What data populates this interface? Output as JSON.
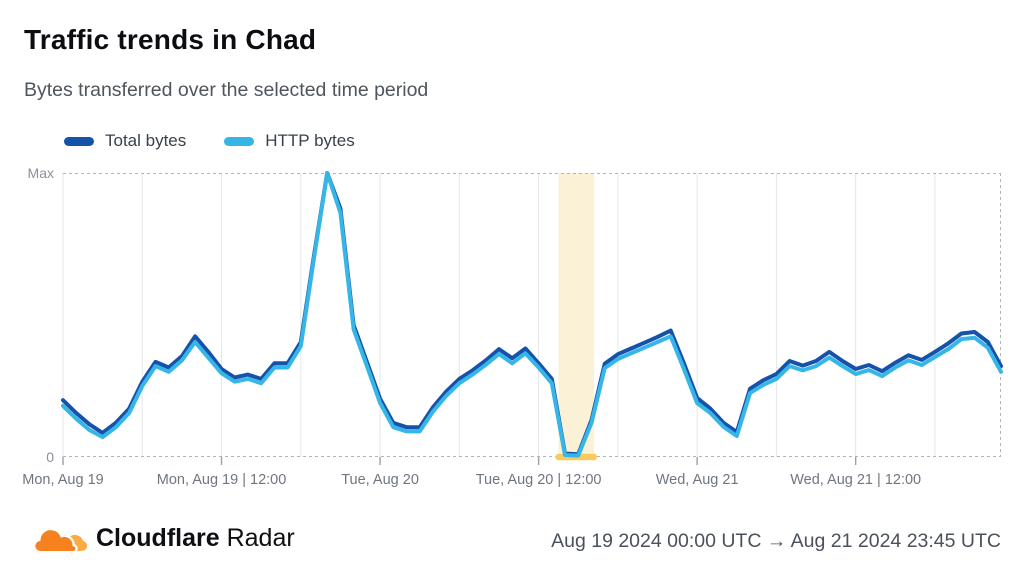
{
  "header": {
    "title": "Traffic trends in Chad",
    "subtitle": "Bytes transferred over the selected time period"
  },
  "legend": [
    {
      "label": "Total bytes",
      "color": "#1552AA"
    },
    {
      "label": "HTTP bytes",
      "color": "#35B6E6"
    }
  ],
  "chart_data": {
    "type": "line",
    "title": "Traffic trends in Chad",
    "xlabel": "",
    "ylabel": "",
    "ylim_labels": {
      "top": "Max",
      "bottom": "0"
    },
    "grid": "vertical-every-6h, dashed top/bottom/right borders",
    "legend_position": "top-left",
    "x_unit": "hours since Aug 19 2024 00:00 UTC",
    "x_span_hours": 71,
    "gridline_every_hours": 6,
    "x_tick_labels": [
      {
        "hour": 0,
        "label": "Mon, Aug 19"
      },
      {
        "hour": 12,
        "label": "Mon, Aug 19 | 12:00"
      },
      {
        "hour": 24,
        "label": "Tue, Aug 20"
      },
      {
        "hour": 36,
        "label": "Tue, Aug 20 | 12:00"
      },
      {
        "hour": 48,
        "label": "Wed, Aug 21"
      },
      {
        "hour": 60,
        "label": "Wed, Aug 21 | 12:00"
      }
    ],
    "y_scale": "relative, 0 to Max (100)",
    "series": [
      {
        "name": "Total bytes",
        "color": "#1552AA",
        "values": [
          20,
          15.5,
          11.5,
          8.5,
          12,
          17,
          26.5,
          33.5,
          31.5,
          35.5,
          42.5,
          37,
          31,
          28,
          29,
          27.5,
          33,
          33,
          40.5,
          71,
          100,
          87.5,
          46.5,
          33.5,
          20.5,
          12,
          10.5,
          10.5,
          17.5,
          23,
          27.5,
          30.5,
          34,
          38,
          34.8,
          38.2,
          33,
          27.5,
          1.2,
          1,
          13,
          32.8,
          36.2,
          38.2,
          40.2,
          42.3,
          44.5,
          33,
          20.8,
          17,
          12,
          8.8,
          24,
          27,
          29.2,
          33.8,
          32.2,
          33.8,
          37,
          33.8,
          31,
          32.4,
          30.2,
          33.2,
          35.8,
          34.2,
          37,
          40,
          43.5,
          44,
          40.5,
          32
        ]
      },
      {
        "name": "HTTP bytes",
        "color": "#35B6E6",
        "values": [
          18,
          13.5,
          9.5,
          7,
          10.5,
          15.5,
          25,
          32,
          30,
          34,
          40.5,
          35,
          29.5,
          26.5,
          27.5,
          26,
          31.5,
          31.5,
          39,
          70,
          100,
          86,
          45,
          32,
          19,
          10.5,
          9,
          9,
          16,
          21.5,
          26,
          29,
          32.5,
          36.3,
          33,
          36.5,
          31.5,
          26,
          0.7,
          0.5,
          12,
          31.3,
          34.5,
          36.5,
          38.5,
          40.5,
          42.5,
          31,
          19,
          15.5,
          10.6,
          7.4,
          22.5,
          25.4,
          27.5,
          32,
          30.5,
          32,
          35,
          32,
          29.2,
          30.6,
          28.5,
          31.5,
          34,
          32.4,
          35.2,
          38,
          41.5,
          42,
          38.5,
          30
        ]
      }
    ],
    "annotation_band": {
      "start_hour": 37.5,
      "end_hour": 40.2,
      "fill": "#FBF1D6",
      "bar_color": "#F8CB5E",
      "meaning": "highlighted anomaly window around Tue, Aug 20 | 12:00 where traffic drops to 0"
    },
    "colors": {
      "gridline": "#E4E6E9",
      "dashed_border": "#AFB5BD",
      "tick": "#9AA0A8"
    }
  },
  "footer": {
    "brand_bold": "Cloudflare",
    "brand_regular": "Radar",
    "date_range": "Aug 19 2024 00:00 UTC → Aug 21 2024 23:45 UTC"
  }
}
